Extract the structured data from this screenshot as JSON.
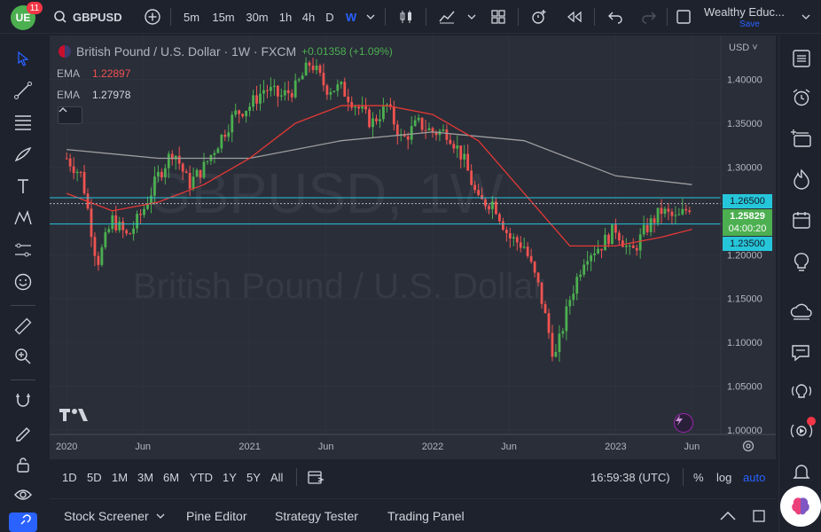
{
  "topbar": {
    "notifications": "11",
    "symbol": "GBPUSD",
    "intervals": [
      "5m",
      "15m",
      "30m",
      "1h",
      "4h",
      "D",
      "W"
    ],
    "active_interval": "W",
    "layout_name": "Wealthy Educ...",
    "save_label": "Save"
  },
  "legend": {
    "title": "British Pound / U.S. Dollar · 1W · FXCM",
    "change": "+0.01358 (+1.09%)",
    "ema1_label": "EMA",
    "ema1_value": "1.22897",
    "ema2_label": "EMA",
    "ema2_value": "1.27978"
  },
  "watermark": {
    "symbol": "GBPUSD, 1W",
    "description": "British Pound / U.S. Dollar"
  },
  "price_axis": {
    "currency": "USD",
    "ticks": [
      "1.40000",
      "1.35000",
      "1.30000",
      "1.20000",
      "1.15000",
      "1.10000",
      "1.05000",
      "1.00000"
    ],
    "tag_upper": "1.26500",
    "tag_current": "1.25829",
    "tag_countdown": "04:00:20",
    "tag_lower": "1.23500"
  },
  "time_axis": {
    "labels": [
      "2020",
      "Jun",
      "2021",
      "Jun",
      "2022",
      "Jun",
      "2023",
      "Jun"
    ]
  },
  "range_bar": {
    "ranges": [
      "1D",
      "5D",
      "1M",
      "3M",
      "6M",
      "YTD",
      "1Y",
      "5Y",
      "All"
    ],
    "clock": "16:59:38 (UTC)",
    "percent_label": "%",
    "log_label": "log",
    "auto_label": "auto"
  },
  "panel_bar": {
    "tabs": [
      "Stock Screener",
      "Pine Editor",
      "Strategy Tester",
      "Trading Panel"
    ]
  },
  "colors": {
    "up": "#26a69a",
    "up_bright": "#4caf50",
    "down": "#ef5350",
    "ema_fast": "#e53935",
    "ema_slow": "#9e9e9e",
    "hline": "#26c6da",
    "current_tag": "#4caf50",
    "active": "#2962ff"
  },
  "chart_data": {
    "type": "candlestick",
    "symbol": "GBPUSD",
    "timeframe": "1W",
    "ylim": [
      1.0,
      1.44
    ],
    "x_labels": [
      "2020",
      "Jun",
      "2021",
      "Jun",
      "2022",
      "Jun",
      "2023",
      "Jun"
    ],
    "horizontal_lines": [
      1.265,
      1.235
    ],
    "current_price": 1.25829,
    "close_path": [
      {
        "t": "2020-01",
        "v": 1.31
      },
      {
        "t": "2020-02",
        "v": 1.29
      },
      {
        "t": "2020-03",
        "v": 1.19
      },
      {
        "t": "2020-04",
        "v": 1.24
      },
      {
        "t": "2020-05",
        "v": 1.22
      },
      {
        "t": "2020-06",
        "v": 1.25
      },
      {
        "t": "2020-07",
        "v": 1.29
      },
      {
        "t": "2020-08",
        "v": 1.32
      },
      {
        "t": "2020-09",
        "v": 1.28
      },
      {
        "t": "2020-10",
        "v": 1.3
      },
      {
        "t": "2020-11",
        "v": 1.33
      },
      {
        "t": "2020-12",
        "v": 1.36
      },
      {
        "t": "2021-01",
        "v": 1.37
      },
      {
        "t": "2021-02",
        "v": 1.39
      },
      {
        "t": "2021-03",
        "v": 1.38
      },
      {
        "t": "2021-04",
        "v": 1.39
      },
      {
        "t": "2021-05",
        "v": 1.42
      },
      {
        "t": "2021-06",
        "v": 1.39
      },
      {
        "t": "2021-07",
        "v": 1.39
      },
      {
        "t": "2021-08",
        "v": 1.37
      },
      {
        "t": "2021-09",
        "v": 1.35
      },
      {
        "t": "2021-10",
        "v": 1.37
      },
      {
        "t": "2021-11",
        "v": 1.33
      },
      {
        "t": "2021-12",
        "v": 1.35
      },
      {
        "t": "2022-01",
        "v": 1.34
      },
      {
        "t": "2022-02",
        "v": 1.34
      },
      {
        "t": "2022-03",
        "v": 1.31
      },
      {
        "t": "2022-04",
        "v": 1.26
      },
      {
        "t": "2022-05",
        "v": 1.26
      },
      {
        "t": "2022-06",
        "v": 1.22
      },
      {
        "t": "2022-07",
        "v": 1.21
      },
      {
        "t": "2022-08",
        "v": 1.16
      },
      {
        "t": "2022-09",
        "v": 1.08
      },
      {
        "t": "2022-10",
        "v": 1.15
      },
      {
        "t": "2022-11",
        "v": 1.2
      },
      {
        "t": "2022-12",
        "v": 1.21
      },
      {
        "t": "2023-01",
        "v": 1.23
      },
      {
        "t": "2023-02",
        "v": 1.2
      },
      {
        "t": "2023-03",
        "v": 1.23
      },
      {
        "t": "2023-04",
        "v": 1.25
      },
      {
        "t": "2023-05",
        "v": 1.24
      },
      {
        "t": "2023-06",
        "v": 1.258
      }
    ],
    "ema_fast_path": [
      {
        "t": "2020-01",
        "v": 1.27
      },
      {
        "t": "2020-04",
        "v": 1.25
      },
      {
        "t": "2020-07",
        "v": 1.26
      },
      {
        "t": "2020-10",
        "v": 1.28
      },
      {
        "t": "2021-01",
        "v": 1.31
      },
      {
        "t": "2021-04",
        "v": 1.35
      },
      {
        "t": "2021-07",
        "v": 1.37
      },
      {
        "t": "2021-10",
        "v": 1.37
      },
      {
        "t": "2022-01",
        "v": 1.36
      },
      {
        "t": "2022-04",
        "v": 1.33
      },
      {
        "t": "2022-07",
        "v": 1.27
      },
      {
        "t": "2022-10",
        "v": 1.21
      },
      {
        "t": "2023-01",
        "v": 1.21
      },
      {
        "t": "2023-04",
        "v": 1.22
      },
      {
        "t": "2023-06",
        "v": 1.229
      }
    ],
    "ema_slow_path": [
      {
        "t": "2020-01",
        "v": 1.32
      },
      {
        "t": "2020-07",
        "v": 1.31
      },
      {
        "t": "2021-01",
        "v": 1.31
      },
      {
        "t": "2021-07",
        "v": 1.33
      },
      {
        "t": "2022-01",
        "v": 1.34
      },
      {
        "t": "2022-07",
        "v": 1.33
      },
      {
        "t": "2023-01",
        "v": 1.29
      },
      {
        "t": "2023-06",
        "v": 1.28
      }
    ]
  }
}
